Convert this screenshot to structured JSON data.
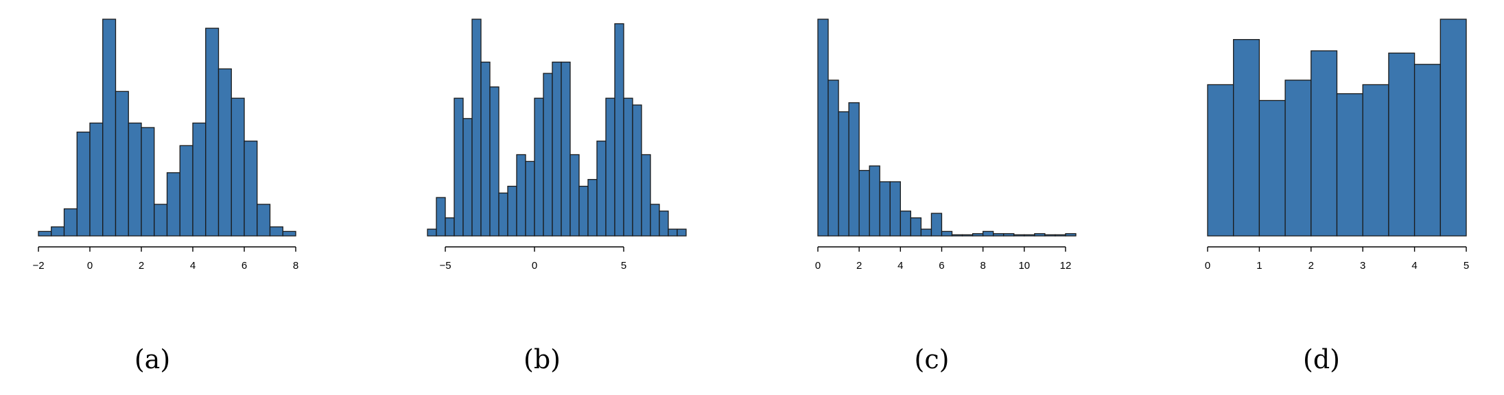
{
  "colors": {
    "bar_fill": "#3b76ae",
    "bar_stroke": "#1a1a1a"
  },
  "chart_data": [
    {
      "type": "bar",
      "caption": "(a)",
      "xlim": [
        -2,
        8
      ],
      "ticks": [
        -2,
        0,
        2,
        4,
        6,
        8
      ],
      "tick_labels": [
        "−2",
        "0",
        "2",
        "4",
        "6",
        "8"
      ],
      "bin_start": -2,
      "bin_width": 0.5,
      "values": [
        2,
        4,
        12,
        46,
        50,
        96,
        64,
        50,
        48,
        14,
        28,
        40,
        50,
        92,
        74,
        61,
        42,
        14,
        4,
        2
      ],
      "ylim": [
        0,
        96
      ]
    },
    {
      "type": "bar",
      "caption": "(b)",
      "xlim": [
        -6,
        8.5
      ],
      "ticks": [
        -5,
        0,
        5
      ],
      "tick_labels": [
        "−5",
        "0",
        "5"
      ],
      "bin_start": -6,
      "bin_width": 0.5,
      "values": [
        3,
        17,
        8,
        61,
        52,
        96,
        77,
        66,
        19,
        22,
        36,
        33,
        61,
        72,
        77,
        77,
        36,
        22,
        25,
        42,
        61,
        94,
        61,
        58,
        36,
        14,
        11,
        3,
        3
      ],
      "ylim": [
        0,
        96
      ]
    },
    {
      "type": "bar",
      "caption": "(c)",
      "xlim": [
        0,
        12.5
      ],
      "ticks": [
        0,
        2,
        4,
        6,
        8,
        10,
        12
      ],
      "tick_labels": [
        "0",
        "2",
        "4",
        "6",
        "8",
        "10",
        "12"
      ],
      "bin_start": 0,
      "bin_width": 0.5,
      "values": [
        96,
        69,
        55,
        59,
        29,
        31,
        24,
        24,
        11,
        8,
        3,
        10,
        2,
        0.5,
        0.5,
        1,
        2,
        1,
        1,
        0.5,
        0.5,
        1,
        0.5,
        0.5,
        1
      ],
      "ylim": [
        0,
        96
      ]
    },
    {
      "type": "bar",
      "caption": "(d)",
      "xlim": [
        0,
        5
      ],
      "ticks": [
        0,
        1,
        2,
        3,
        4,
        5
      ],
      "tick_labels": [
        "0",
        "1",
        "2",
        "3",
        "4",
        "5"
      ],
      "bin_start": 0,
      "bin_width": 0.5,
      "values": [
        67,
        87,
        60,
        69,
        82,
        63,
        67,
        81,
        76,
        96
      ],
      "ylim": [
        0,
        96
      ]
    }
  ]
}
